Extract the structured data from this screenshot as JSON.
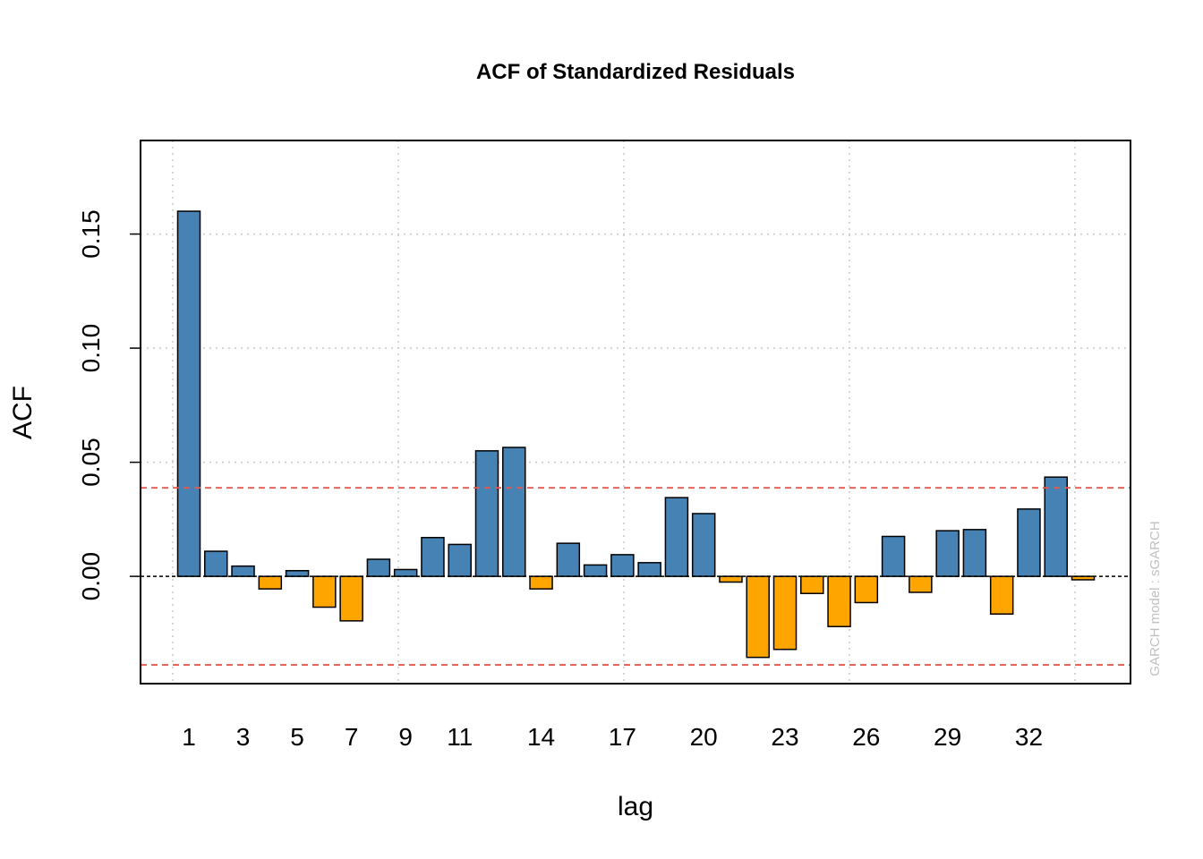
{
  "chart_data": {
    "type": "bar",
    "title": "ACF of Standardized Residuals",
    "xlabel": "lag",
    "ylabel": "ACF",
    "watermark": "GARCH model :  sGARCH",
    "x": [
      1,
      2,
      3,
      4,
      5,
      6,
      7,
      8,
      9,
      10,
      11,
      12,
      13,
      14,
      15,
      16,
      17,
      18,
      19,
      20,
      21,
      22,
      23,
      24,
      25,
      26,
      27,
      28,
      29,
      30,
      31,
      32,
      33,
      34
    ],
    "values": [
      0.16,
      0.011,
      0.0045,
      -0.0055,
      0.0025,
      -0.0135,
      -0.0195,
      0.0075,
      0.003,
      0.017,
      0.014,
      0.055,
      0.0565,
      -0.0055,
      0.0145,
      0.005,
      0.0095,
      0.006,
      0.0345,
      0.0275,
      -0.0025,
      -0.0355,
      -0.032,
      -0.0075,
      -0.022,
      -0.0115,
      0.0175,
      -0.007,
      0.02,
      0.0205,
      -0.0165,
      0.0295,
      0.0435,
      -0.0015
    ],
    "x_tick_labels": [
      "1",
      "3",
      "5",
      "7",
      "9",
      "11",
      "14",
      "17",
      "20",
      "23",
      "26",
      "29",
      "32"
    ],
    "x_tick_values": [
      1,
      3,
      5,
      7,
      9,
      11,
      14,
      17,
      20,
      23,
      26,
      29,
      32
    ],
    "y_ticks": [
      0.0,
      0.05,
      0.1,
      0.15
    ],
    "y_tick_labels": [
      "0.00",
      "0.05",
      "0.10",
      "0.15"
    ],
    "ylim": [
      -0.047,
      0.191
    ],
    "confidence_bound": 0.0388,
    "grid": true,
    "colors": {
      "positive": "#4682B4",
      "negative": "#FFA500",
      "confidence": "#E8574A",
      "grid": "#c8c8c8"
    }
  }
}
